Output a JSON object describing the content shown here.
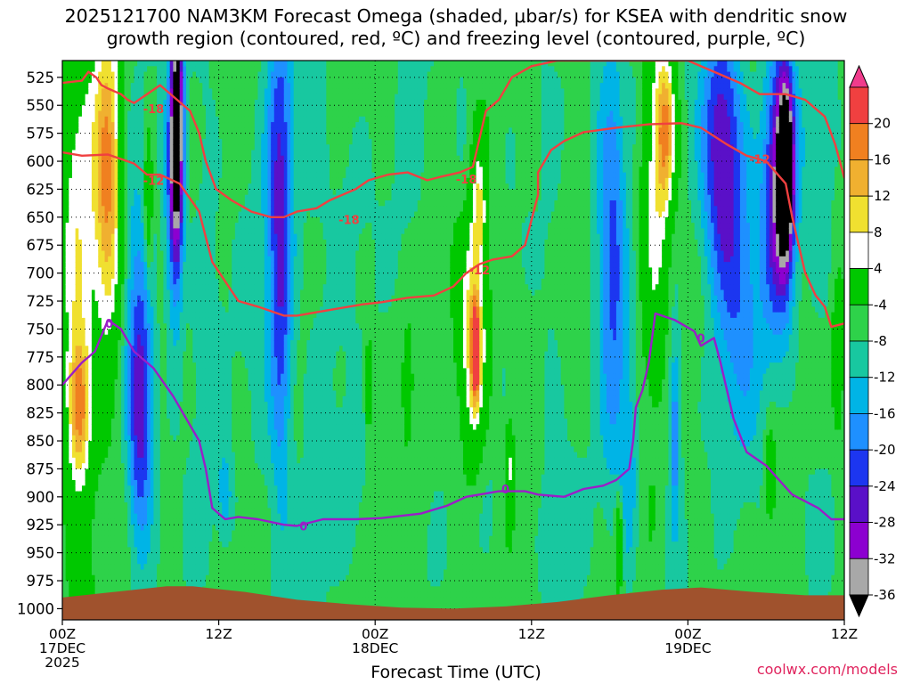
{
  "title_line1": "2025121700 NAM3KM Forecast Omega (shaded, μbar/s) for KSEA with dendritic snow",
  "title_line2": "growth region (contoured, red, ºC) and freezing level (contoured, purple, ºC)",
  "xaxis_title": "Forecast Time (UTC)",
  "watermark": "coolwx.com/models",
  "chart_data": {
    "type": "heatmap",
    "x": {
      "unit": "forecast hour",
      "range": [
        0,
        60
      ],
      "ticks": [
        {
          "hour": 0,
          "lines": [
            "00Z",
            "17DEC",
            "2025"
          ]
        },
        {
          "hour": 12,
          "lines": [
            "12Z"
          ]
        },
        {
          "hour": 24,
          "lines": [
            "00Z",
            "18DEC"
          ]
        },
        {
          "hour": 36,
          "lines": [
            "12Z"
          ]
        },
        {
          "hour": 48,
          "lines": [
            "00Z",
            "19DEC"
          ]
        },
        {
          "hour": 60,
          "lines": [
            "12Z"
          ]
        }
      ]
    },
    "y": {
      "unit": "hPa",
      "range": [
        1010,
        510
      ],
      "ticks": [
        525,
        550,
        575,
        600,
        625,
        650,
        675,
        700,
        725,
        750,
        775,
        800,
        825,
        850,
        875,
        900,
        925,
        950,
        975,
        1000
      ]
    },
    "grid": true,
    "colorbar": {
      "labels": [
        "20",
        "16",
        "12",
        "8",
        "4",
        "-4",
        "-8",
        "-12",
        "-16",
        "-20",
        "-24",
        "-28",
        "-32",
        "-36"
      ],
      "levels": [
        -36,
        -32,
        -28,
        -24,
        -20,
        -16,
        -12,
        -8,
        -4,
        4,
        8,
        12,
        16,
        20
      ],
      "colors": [
        "#000000",
        "#a8a8a8",
        "#8c00d0",
        "#5a10c8",
        "#1c36f0",
        "#1e90ff",
        "#00b4e6",
        "#18c8a0",
        "#2ed24a",
        "#00c800",
        "#ffffff",
        "#f0e030",
        "#f0b030",
        "#f08020",
        "#f04040",
        "#f03c8c"
      ]
    },
    "omega_blobs": [
      {
        "h": 1.2,
        "p": 700,
        "rh": 1.4,
        "rp": 260,
        "v": 7
      },
      {
        "h": 3.5,
        "p": 620,
        "rh": 1.1,
        "rp": 150,
        "v": 18
      },
      {
        "h": 1.3,
        "p": 820,
        "rh": 0.8,
        "rp": 60,
        "v": 12
      },
      {
        "h": 6.0,
        "p": 820,
        "rh": 1.0,
        "rp": 120,
        "v": -28
      },
      {
        "h": 5.3,
        "p": 650,
        "rh": 1.0,
        "rp": 140,
        "v": -10
      },
      {
        "h": 6.6,
        "p": 640,
        "rh": 0.3,
        "rp": 60,
        "v": 6
      },
      {
        "h": 8.8,
        "p": 560,
        "rh": 0.5,
        "rp": 110,
        "v": -36
      },
      {
        "h": 8.6,
        "p": 640,
        "rh": 0.7,
        "rp": 120,
        "v": -22
      },
      {
        "h": 11.0,
        "p": 700,
        "rh": 1.2,
        "rp": 260,
        "v": -10
      },
      {
        "h": 12.5,
        "p": 900,
        "rh": 0.6,
        "rp": 40,
        "v": -14
      },
      {
        "h": 16.7,
        "p": 620,
        "rh": 1.0,
        "rp": 180,
        "v": -22
      },
      {
        "h": 16.8,
        "p": 800,
        "rh": 0.8,
        "rp": 150,
        "v": -14
      },
      {
        "h": 15.2,
        "p": 800,
        "rh": 1.4,
        "rp": 200,
        "v": -9
      },
      {
        "h": 19.5,
        "p": 700,
        "rh": 1.5,
        "rp": 280,
        "v": -9
      },
      {
        "h": 22.0,
        "p": 620,
        "rh": 1.6,
        "rp": 90,
        "v": -9
      },
      {
        "h": 22.4,
        "p": 900,
        "rh": 1.6,
        "rp": 90,
        "v": -9
      },
      {
        "h": 23.5,
        "p": 800,
        "rh": 0.3,
        "rp": 40,
        "v": 6
      },
      {
        "h": 26.6,
        "p": 580,
        "rh": 1.2,
        "rp": 120,
        "v": -8
      },
      {
        "h": 26.5,
        "p": 800,
        "rh": 0.3,
        "rp": 40,
        "v": 6
      },
      {
        "h": 31.6,
        "p": 760,
        "rh": 1.1,
        "rp": 110,
        "v": 14
      },
      {
        "h": 31.7,
        "p": 770,
        "rh": 0.3,
        "rp": 40,
        "v": 20
      },
      {
        "h": 32.0,
        "p": 640,
        "rh": 0.5,
        "rp": 50,
        "v": 6
      },
      {
        "h": 32.5,
        "p": 880,
        "rh": 1.1,
        "rp": 90,
        "v": -9
      },
      {
        "h": 30.7,
        "p": 580,
        "rh": 0.6,
        "rp": 100,
        "v": -9
      },
      {
        "h": 34.3,
        "p": 870,
        "rh": 0.3,
        "rp": 40,
        "v": 5
      },
      {
        "h": 37.5,
        "p": 790,
        "rh": 1.0,
        "rp": 200,
        "v": -9
      },
      {
        "h": 38.5,
        "p": 930,
        "rh": 1.5,
        "rp": 80,
        "v": -9
      },
      {
        "h": 42.3,
        "p": 680,
        "rh": 1.0,
        "rp": 200,
        "v": -20
      },
      {
        "h": 43.5,
        "p": 880,
        "rh": 0.7,
        "rp": 100,
        "v": -14
      },
      {
        "h": 41.2,
        "p": 600,
        "rh": 0.8,
        "rp": 160,
        "v": -10
      },
      {
        "h": 42.7,
        "p": 940,
        "rh": 0.3,
        "rp": 40,
        "v": 8
      },
      {
        "h": 45.5,
        "p": 640,
        "rh": 1.2,
        "rp": 150,
        "v": 7
      },
      {
        "h": 46.3,
        "p": 570,
        "rh": 0.8,
        "rp": 70,
        "v": 14
      },
      {
        "h": 44.0,
        "p": 560,
        "rh": 0.6,
        "rp": 60,
        "v": -10
      },
      {
        "h": 46.8,
        "p": 820,
        "rh": 0.9,
        "rp": 200,
        "v": -9
      },
      {
        "h": 47.0,
        "p": 840,
        "rh": 0.4,
        "rp": 80,
        "v": -18
      },
      {
        "h": 50.6,
        "p": 590,
        "rh": 1.6,
        "rp": 120,
        "v": -28
      },
      {
        "h": 52.0,
        "p": 730,
        "rh": 1.8,
        "rp": 120,
        "v": -16
      },
      {
        "h": 55.0,
        "p": 620,
        "rh": 1.2,
        "rp": 130,
        "v": -30
      },
      {
        "h": 55.5,
        "p": 610,
        "rh": 0.6,
        "rp": 80,
        "v": -36
      },
      {
        "h": 58.2,
        "p": 620,
        "rh": 1.4,
        "rp": 160,
        "v": -10
      },
      {
        "h": 53.5,
        "p": 900,
        "rh": 1.5,
        "rp": 120,
        "v": -8
      },
      {
        "h": 54.3,
        "p": 880,
        "rh": 0.4,
        "rp": 40,
        "v": 6
      },
      {
        "h": 59.5,
        "p": 780,
        "rh": 0.4,
        "rp": 60,
        "v": 6
      },
      {
        "h": 57.5,
        "p": 920,
        "rh": 1.2,
        "rp": 50,
        "v": -9
      }
    ],
    "contours": [
      {
        "name": "-18",
        "color": "#f04040",
        "points": [
          [
            0,
            530
          ],
          [
            1.5,
            528
          ],
          [
            2.0,
            520
          ],
          [
            2.6,
            525
          ],
          [
            3.0,
            532
          ],
          [
            3.5,
            535
          ],
          [
            4.5,
            540
          ],
          [
            5.0,
            545
          ],
          [
            5.5,
            548
          ],
          [
            6.5,
            540
          ],
          [
            7.5,
            532
          ],
          [
            8.8,
            545
          ],
          [
            9.8,
            555
          ],
          [
            10.5,
            575
          ],
          [
            11.0,
            600
          ],
          [
            11.8,
            625
          ],
          [
            13.0,
            635
          ],
          [
            14.5,
            645
          ],
          [
            16.0,
            650
          ],
          [
            17.0,
            650
          ],
          [
            18.0,
            645
          ],
          [
            19.5,
            642
          ],
          [
            20.5,
            635
          ],
          [
            21.5,
            630
          ],
          [
            22.5,
            625
          ],
          [
            23.5,
            617
          ],
          [
            25.0,
            612
          ],
          [
            26.5,
            610
          ],
          [
            28.0,
            617
          ],
          [
            29.0,
            614
          ],
          [
            30.5,
            610
          ],
          [
            31.5,
            605
          ],
          [
            32.0,
            580
          ],
          [
            32.5,
            555
          ],
          [
            33.5,
            545
          ],
          [
            34.5,
            525
          ],
          [
            36.0,
            515
          ],
          [
            38.0,
            510
          ],
          [
            40.0,
            510
          ],
          [
            44.0,
            510
          ],
          [
            48.0,
            510
          ],
          [
            50.0,
            520
          ],
          [
            52.0,
            530
          ],
          [
            53.5,
            540
          ],
          [
            55.5,
            540
          ],
          [
            57.0,
            545
          ],
          [
            58.5,
            560
          ],
          [
            59.3,
            585
          ],
          [
            60,
            615
          ]
        ],
        "labels": [
          [
            7.0,
            553
          ],
          [
            22.0,
            652
          ],
          [
            31.0,
            616
          ]
        ]
      },
      {
        "name": "-12",
        "color": "#f04040",
        "points": [
          [
            0,
            592
          ],
          [
            1.5,
            595
          ],
          [
            3.5,
            594
          ],
          [
            4.5,
            598
          ],
          [
            5.5,
            602
          ],
          [
            6.5,
            612
          ],
          [
            7.5,
            612
          ],
          [
            9.0,
            620
          ],
          [
            10.5,
            645
          ],
          [
            11.5,
            690
          ],
          [
            13.5,
            725
          ],
          [
            15.0,
            730
          ],
          [
            17.0,
            738
          ],
          [
            18.0,
            738
          ],
          [
            19.5,
            735
          ],
          [
            21.0,
            732
          ],
          [
            22.0,
            730
          ],
          [
            23.0,
            728
          ],
          [
            24.5,
            726
          ],
          [
            26.5,
            722
          ],
          [
            28.5,
            720
          ],
          [
            30.0,
            712
          ],
          [
            31.0,
            700
          ],
          [
            32.0,
            692
          ],
          [
            33.0,
            688
          ],
          [
            34.5,
            685
          ],
          [
            35.5,
            675
          ],
          [
            36.5,
            630
          ],
          [
            36.5,
            610
          ],
          [
            37.5,
            590
          ],
          [
            38.5,
            582
          ],
          [
            40.0,
            574
          ],
          [
            42.5,
            570
          ],
          [
            45.0,
            567
          ],
          [
            47.5,
            566
          ],
          [
            49.0,
            570
          ],
          [
            51.0,
            585
          ],
          [
            52.5,
            595
          ],
          [
            54.0,
            600
          ],
          [
            55.5,
            620
          ],
          [
            56.0,
            650
          ],
          [
            57.0,
            700
          ],
          [
            57.8,
            720
          ],
          [
            58.5,
            730
          ],
          [
            59.0,
            748
          ],
          [
            60,
            745
          ]
        ],
        "labels": [
          [
            7.0,
            617
          ],
          [
            32.0,
            697
          ],
          [
            53.5,
            598
          ]
        ]
      },
      {
        "name": "0",
        "color": "#9a1ec8",
        "points": [
          [
            0,
            800
          ],
          [
            1.5,
            780
          ],
          [
            2.5,
            770
          ],
          [
            3.5,
            742
          ],
          [
            4.5,
            750
          ],
          [
            5.5,
            770
          ],
          [
            7.0,
            785
          ],
          [
            8.5,
            810
          ],
          [
            9.5,
            830
          ],
          [
            10.5,
            850
          ],
          [
            11.0,
            875
          ],
          [
            11.5,
            910
          ],
          [
            12.5,
            920
          ],
          [
            13.5,
            918
          ],
          [
            15.0,
            920
          ],
          [
            17.0,
            925
          ],
          [
            18.0,
            926
          ],
          [
            20.0,
            920
          ],
          [
            22.5,
            920
          ],
          [
            24.5,
            919
          ],
          [
            27.5,
            915
          ],
          [
            29.5,
            908
          ],
          [
            31.0,
            900
          ],
          [
            33.5,
            895
          ],
          [
            35.5,
            895
          ],
          [
            36.5,
            898
          ],
          [
            38.5,
            900
          ],
          [
            40.0,
            893
          ],
          [
            41.5,
            890
          ],
          [
            42.5,
            885
          ],
          [
            43.5,
            875
          ],
          [
            43.8,
            850
          ],
          [
            44.0,
            820
          ],
          [
            44.5,
            805
          ],
          [
            45.0,
            780
          ],
          [
            45.5,
            736
          ],
          [
            47.0,
            742
          ],
          [
            48.5,
            752
          ],
          [
            49.0,
            765
          ],
          [
            50.0,
            758
          ],
          [
            50.5,
            780
          ],
          [
            51.5,
            830
          ],
          [
            52.5,
            860
          ],
          [
            54.0,
            872
          ],
          [
            55.0,
            885
          ],
          [
            56.0,
            898
          ],
          [
            58.0,
            910
          ],
          [
            59.0,
            920
          ],
          [
            60,
            920
          ]
        ],
        "labels": [
          [
            3.6,
            745
          ],
          [
            18.5,
            926
          ],
          [
            34.0,
            893
          ],
          [
            49.0,
            758
          ]
        ]
      }
    ],
    "terrain": {
      "color": "#a0522d",
      "points": [
        [
          0,
          990
        ],
        [
          4.0,
          985
        ],
        [
          8.0,
          980
        ],
        [
          10.0,
          980
        ],
        [
          14.0,
          985
        ],
        [
          18.0,
          992
        ],
        [
          22.0,
          996
        ],
        [
          26.0,
          999
        ],
        [
          30.0,
          1000
        ],
        [
          34.0,
          998
        ],
        [
          38.0,
          994
        ],
        [
          42.0,
          988
        ],
        [
          46.0,
          983
        ],
        [
          49.0,
          981
        ],
        [
          53.0,
          985
        ],
        [
          57.0,
          988
        ],
        [
          60,
          988
        ]
      ]
    }
  }
}
